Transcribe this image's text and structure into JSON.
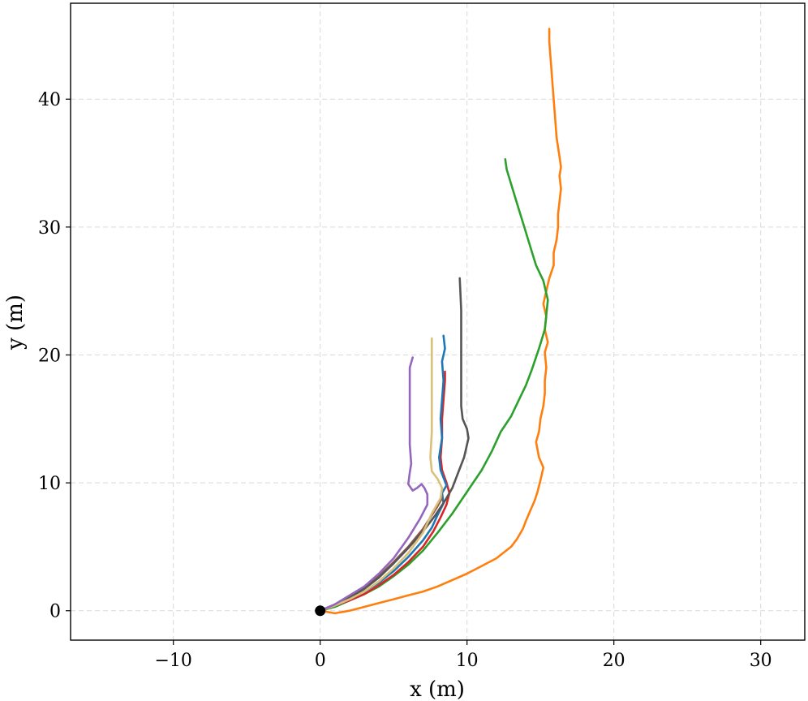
{
  "chart_data": {
    "type": "line",
    "title": "",
    "xlabel": "x (m)",
    "ylabel": "y (m)",
    "xlim": [
      -17,
      33
    ],
    "ylim": [
      -2.3,
      47.5
    ],
    "grid": true,
    "xticks": [
      -10,
      0,
      10,
      20,
      30
    ],
    "xtick_labels": [
      "−10",
      "0",
      "10",
      "20",
      "30"
    ],
    "yticks": [
      0,
      10,
      20,
      30,
      40
    ],
    "ytick_labels": [
      "0",
      "10",
      "20",
      "30",
      "40"
    ],
    "origin_marker": {
      "x": 0,
      "y": 0,
      "color": "#000000"
    },
    "series": [
      {
        "color": "#ff7f0e",
        "points": [
          [
            0,
            0
          ],
          [
            1,
            -0.2
          ],
          [
            2,
            0
          ],
          [
            3,
            0.3
          ],
          [
            4,
            0.6
          ],
          [
            5,
            0.9
          ],
          [
            6,
            1.2
          ],
          [
            7,
            1.5
          ],
          [
            8,
            1.9
          ],
          [
            9,
            2.4
          ],
          [
            10,
            2.9
          ],
          [
            11,
            3.5
          ],
          [
            12,
            4.1
          ],
          [
            13,
            5.0
          ],
          [
            13.4,
            5.6
          ],
          [
            13.8,
            6.4
          ],
          [
            14.0,
            7.0
          ],
          [
            14.3,
            7.8
          ],
          [
            14.6,
            8.6
          ],
          [
            14.8,
            9.3
          ],
          [
            15.0,
            10.2
          ],
          [
            15.2,
            11.2
          ],
          [
            14.9,
            12.0
          ],
          [
            14.7,
            13.2
          ],
          [
            14.9,
            14.0
          ],
          [
            15.0,
            15.0
          ],
          [
            15.2,
            16.0
          ],
          [
            15.3,
            17.0
          ],
          [
            15.3,
            18.0
          ],
          [
            15.4,
            19.0
          ],
          [
            15.3,
            20.2
          ],
          [
            15.5,
            21.0
          ],
          [
            15.3,
            22.0
          ],
          [
            15.4,
            23.0
          ],
          [
            15.2,
            24.0
          ],
          [
            15.4,
            25.0
          ],
          [
            15.6,
            26.0
          ],
          [
            15.9,
            27.0
          ],
          [
            15.9,
            28.0
          ],
          [
            16.1,
            29.0
          ],
          [
            16.2,
            30.0
          ],
          [
            16.2,
            31.0
          ],
          [
            16.3,
            32.0
          ],
          [
            16.4,
            33.0
          ],
          [
            16.3,
            34.0
          ],
          [
            16.4,
            34.7
          ],
          [
            16.3,
            35.5
          ],
          [
            16.1,
            37.0
          ],
          [
            16.0,
            38.5
          ],
          [
            15.9,
            40.0
          ],
          [
            15.8,
            41.5
          ],
          [
            15.7,
            43.0
          ],
          [
            15.6,
            44.5
          ],
          [
            15.6,
            45.5
          ]
        ]
      },
      {
        "color": "#2ca02c",
        "points": [
          [
            0,
            0
          ],
          [
            1,
            0.3
          ],
          [
            2,
            0.8
          ],
          [
            3,
            1.3
          ],
          [
            4,
            1.9
          ],
          [
            5,
            2.7
          ],
          [
            6,
            3.6
          ],
          [
            7,
            4.7
          ],
          [
            8,
            6.1
          ],
          [
            9,
            7.6
          ],
          [
            10,
            9.3
          ],
          [
            11,
            11.0
          ],
          [
            11.7,
            12.5
          ],
          [
            12.3,
            14.0
          ],
          [
            13.0,
            15.2
          ],
          [
            13.5,
            16.4
          ],
          [
            14.0,
            17.6
          ],
          [
            14.4,
            18.8
          ],
          [
            14.9,
            20.5
          ],
          [
            15.3,
            22.0
          ],
          [
            15.5,
            24.3
          ],
          [
            15.2,
            25.8
          ],
          [
            14.7,
            27.0
          ],
          [
            14.3,
            28.5
          ],
          [
            13.9,
            30.0
          ],
          [
            13.5,
            31.5
          ],
          [
            13.1,
            33.0
          ],
          [
            12.7,
            34.5
          ],
          [
            12.6,
            35.3
          ]
        ]
      },
      {
        "color": "#d62728",
        "points": [
          [
            0,
            0
          ],
          [
            1,
            0.4
          ],
          [
            2,
            0.8
          ],
          [
            3,
            1.3
          ],
          [
            4,
            2.0
          ],
          [
            5,
            2.8
          ],
          [
            6,
            3.8
          ],
          [
            7,
            5.0
          ],
          [
            7.7,
            6.2
          ],
          [
            8.2,
            7.3
          ],
          [
            8.6,
            8.3
          ],
          [
            8.8,
            9.2
          ],
          [
            8.6,
            10.0
          ],
          [
            8.3,
            11.0
          ],
          [
            8.2,
            12.0
          ],
          [
            8.3,
            13.5
          ],
          [
            8.3,
            15.0
          ],
          [
            8.4,
            16.5
          ],
          [
            8.5,
            18.0
          ],
          [
            8.5,
            18.7
          ]
        ]
      },
      {
        "color": "#1f77b4",
        "points": [
          [
            0,
            0
          ],
          [
            1,
            0.4
          ],
          [
            2,
            0.9
          ],
          [
            3,
            1.5
          ],
          [
            4,
            2.2
          ],
          [
            5,
            3.1
          ],
          [
            6,
            4.2
          ],
          [
            7,
            5.5
          ],
          [
            7.6,
            6.5
          ],
          [
            8.0,
            7.5
          ],
          [
            8.4,
            8.4
          ],
          [
            8.3,
            9.2
          ],
          [
            8.6,
            9.8
          ],
          [
            8.4,
            10.4
          ],
          [
            8.2,
            11.0
          ],
          [
            8.1,
            12.0
          ],
          [
            8.3,
            13.5
          ],
          [
            8.2,
            15.0
          ],
          [
            8.3,
            16.5
          ],
          [
            8.4,
            18.0
          ],
          [
            8.3,
            19.5
          ],
          [
            8.5,
            20.5
          ],
          [
            8.4,
            21.5
          ]
        ]
      },
      {
        "color": "#8c564b",
        "points": [
          [
            0,
            0
          ],
          [
            1,
            0.5
          ],
          [
            2,
            1.1
          ],
          [
            3,
            1.8
          ],
          [
            4,
            2.7
          ],
          [
            5,
            3.8
          ],
          [
            6,
            5.0
          ],
          [
            7,
            6.4
          ],
          [
            7.9,
            8.0
          ],
          [
            8.3,
            8.8
          ]
        ]
      },
      {
        "color": "#555555",
        "points": [
          [
            0,
            0
          ],
          [
            1,
            0.4
          ],
          [
            2,
            1.0
          ],
          [
            3,
            1.7
          ],
          [
            4,
            2.6
          ],
          [
            5,
            3.7
          ],
          [
            6,
            4.9
          ],
          [
            7,
            6.2
          ],
          [
            7.8,
            7.4
          ],
          [
            8.5,
            8.6
          ],
          [
            9.0,
            9.6
          ],
          [
            9.4,
            10.8
          ],
          [
            9.8,
            12.0
          ],
          [
            10.1,
            13.5
          ],
          [
            10.0,
            14.2
          ],
          [
            9.7,
            15.0
          ],
          [
            9.6,
            16.0
          ],
          [
            9.6,
            17.5
          ],
          [
            9.6,
            19.5
          ],
          [
            9.6,
            21.5
          ],
          [
            9.6,
            23.5
          ],
          [
            9.5,
            26.0
          ]
        ]
      },
      {
        "color": "#dbc07a",
        "points": [
          [
            0,
            0
          ],
          [
            1,
            0.4
          ],
          [
            2,
            0.9
          ],
          [
            3,
            1.5
          ],
          [
            4,
            2.3
          ],
          [
            5,
            3.3
          ],
          [
            6,
            4.5
          ],
          [
            7,
            6.1
          ],
          [
            7.6,
            7.6
          ],
          [
            8.2,
            8.8
          ],
          [
            8.3,
            9.6
          ],
          [
            8.0,
            10.3
          ],
          [
            7.6,
            10.9
          ],
          [
            7.5,
            12.0
          ],
          [
            7.6,
            14.0
          ],
          [
            7.6,
            16.0
          ],
          [
            7.6,
            18.0
          ],
          [
            7.6,
            20.0
          ],
          [
            7.6,
            21.3
          ]
        ]
      },
      {
        "color": "#9467bd",
        "points": [
          [
            0,
            0
          ],
          [
            1,
            0.5
          ],
          [
            2,
            1.2
          ],
          [
            3,
            1.9
          ],
          [
            4,
            2.9
          ],
          [
            5,
            4.1
          ],
          [
            6,
            5.7
          ],
          [
            6.8,
            7.2
          ],
          [
            7.3,
            8.3
          ],
          [
            7.3,
            9.1
          ],
          [
            7.1,
            9.6
          ],
          [
            6.9,
            9.9
          ],
          [
            6.6,
            9.6
          ],
          [
            6.3,
            9.4
          ],
          [
            6.0,
            9.9
          ],
          [
            6.1,
            10.8
          ],
          [
            6.2,
            11.5
          ],
          [
            6.1,
            13.0
          ],
          [
            6.1,
            15.0
          ],
          [
            6.1,
            17.0
          ],
          [
            6.1,
            19.0
          ],
          [
            6.3,
            19.8
          ]
        ]
      }
    ]
  }
}
